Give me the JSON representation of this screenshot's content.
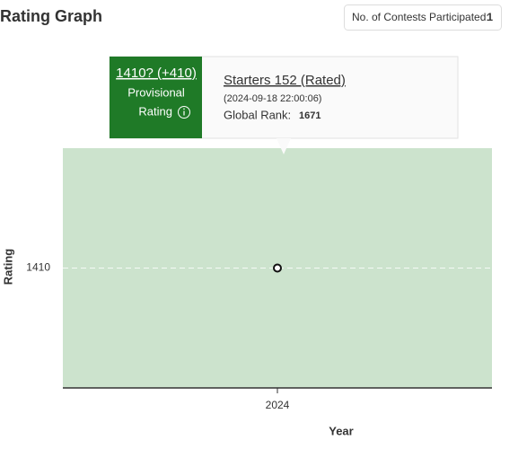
{
  "header": {
    "title": "Rating Graph",
    "contests_label": "No. of Contests Participated:",
    "contests_value": "1"
  },
  "tooltip": {
    "rating": "1410? (+410)",
    "status_line1": "Provisional",
    "status_line2": "Rating",
    "contest": "Starters 152 (Rated)",
    "datetime": "(2024-09-18 22:00:06)",
    "rank_label": "Global Rank:",
    "rank_value": "1671"
  },
  "chart_data": {
    "type": "scatter",
    "categories": [
      "2024"
    ],
    "values": [
      1410
    ],
    "x_label": "Year",
    "y_label": "Rating",
    "ylim": [
      1310,
      1510
    ],
    "yticks": [
      1410
    ],
    "color": "#111111",
    "area_color": "#cce3cd",
    "grid": true
  }
}
